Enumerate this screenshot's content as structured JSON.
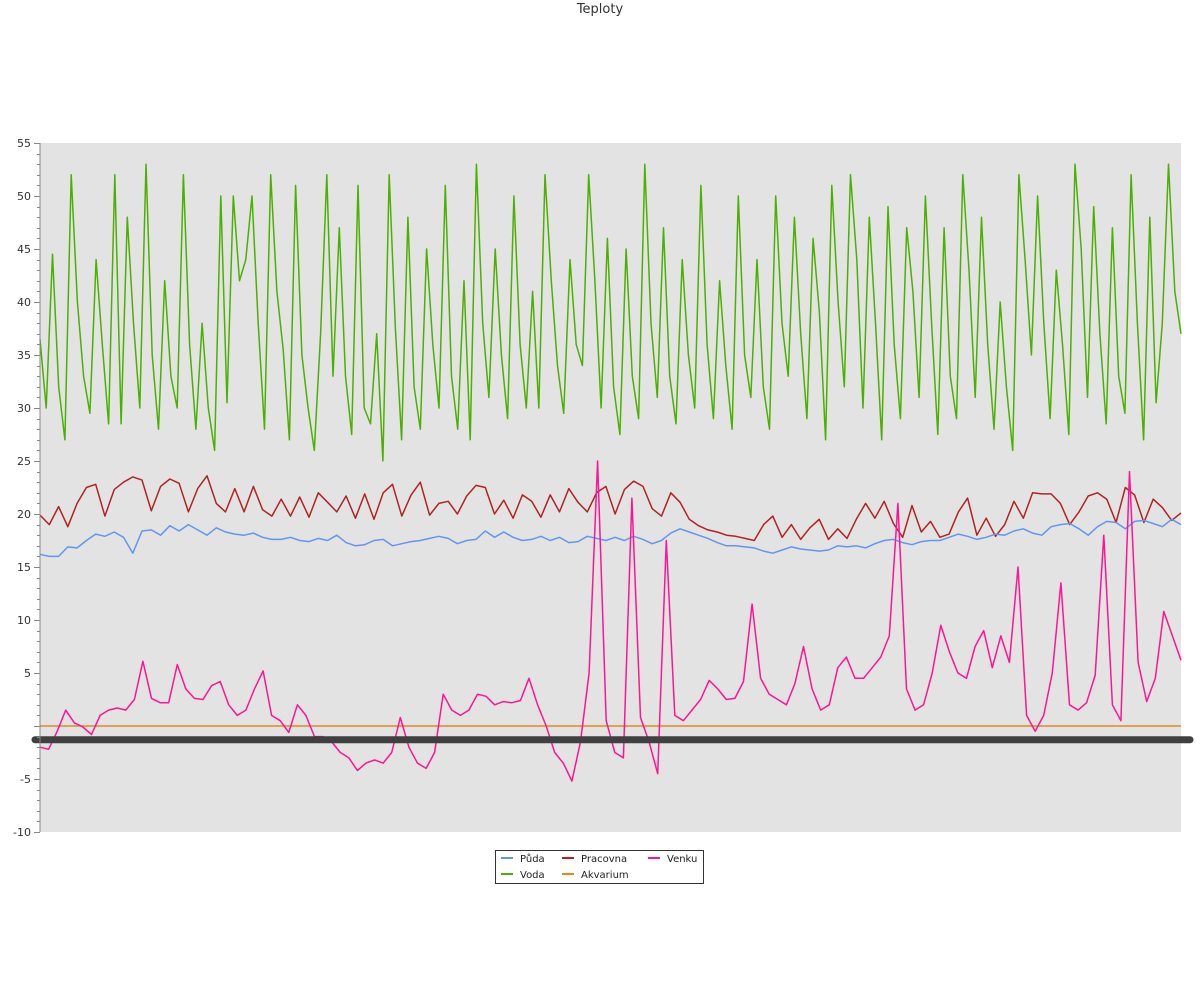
{
  "chart_data": {
    "type": "line",
    "title": "Teploty",
    "xlabel": "",
    "ylabel": "",
    "ylim": [
      -10,
      55
    ],
    "y_ticks": [
      -10,
      -5,
      0,
      5,
      10,
      15,
      20,
      25,
      30,
      35,
      40,
      45,
      50,
      55
    ],
    "y_tick_labels": [
      "-10",
      "-5",
      "",
      "5",
      "10",
      "15",
      "20",
      "25",
      "30",
      "35",
      "40",
      "45",
      "50",
      "55"
    ],
    "grid": false,
    "background": "#e3e3e3",
    "legend_position": "bottom-center",
    "series": [
      {
        "name": "Půda",
        "color": "#6495ed",
        "values": [
          16.2,
          16.0,
          16.0,
          16.9,
          16.8,
          17.5,
          18.1,
          17.9,
          18.3,
          17.8,
          16.3,
          18.4,
          18.5,
          18.0,
          18.9,
          18.4,
          19.0,
          18.5,
          18.0,
          18.7,
          18.3,
          18.1,
          18.0,
          18.2,
          17.8,
          17.6,
          17.6,
          17.8,
          17.5,
          17.4,
          17.7,
          17.5,
          18.0,
          17.3,
          17.0,
          17.1,
          17.5,
          17.6,
          17.0,
          17.2,
          17.4,
          17.5,
          17.7,
          17.9,
          17.7,
          17.2,
          17.5,
          17.6,
          18.4,
          17.8,
          18.3,
          17.8,
          17.5,
          17.6,
          17.9,
          17.5,
          17.8,
          17.3,
          17.4,
          17.9,
          17.7,
          17.5,
          17.8,
          17.5,
          17.9,
          17.6,
          17.2,
          17.5,
          18.2,
          18.6,
          18.3,
          18.0,
          17.7,
          17.3,
          17.0,
          17.0,
          16.9,
          16.8,
          16.5,
          16.3,
          16.6,
          16.9,
          16.7,
          16.6,
          16.5,
          16.6,
          17.0,
          16.9,
          17.0,
          16.8,
          17.2,
          17.5,
          17.6,
          17.3,
          17.1,
          17.4,
          17.5,
          17.5,
          17.8,
          18.1,
          17.9,
          17.6,
          17.8,
          18.1,
          18.0,
          18.4,
          18.6,
          18.2,
          18.0,
          18.8,
          19.0,
          19.1,
          18.6,
          18.0,
          18.8,
          19.3,
          19.2,
          18.6,
          19.3,
          19.4,
          19.1,
          18.8,
          19.5,
          19.0
        ]
      },
      {
        "name": "Pracovna",
        "color": "#b22222",
        "values": [
          19.9,
          19.0,
          20.7,
          18.8,
          21.0,
          22.5,
          22.8,
          19.8,
          22.3,
          23.0,
          23.5,
          23.2,
          20.3,
          22.6,
          23.3,
          22.9,
          20.2,
          22.4,
          23.6,
          21.0,
          20.2,
          22.4,
          20.2,
          22.6,
          20.4,
          19.8,
          21.4,
          19.8,
          21.6,
          19.7,
          22.0,
          21.1,
          20.2,
          21.7,
          19.6,
          21.9,
          19.5,
          22.0,
          22.8,
          19.8,
          21.8,
          23.0,
          19.9,
          21.0,
          21.2,
          20.0,
          21.7,
          22.7,
          22.5,
          20.0,
          21.3,
          19.6,
          21.8,
          21.2,
          19.7,
          21.8,
          20.2,
          22.4,
          21.1,
          20.2,
          22.0,
          22.6,
          20.0,
          22.3,
          23.1,
          22.6,
          20.5,
          19.8,
          22.0,
          21.1,
          19.5,
          18.9,
          18.5,
          18.3,
          18.0,
          17.9,
          17.7,
          17.5,
          19.0,
          19.8,
          17.8,
          19.0,
          17.6,
          18.7,
          19.5,
          17.6,
          18.6,
          17.7,
          19.5,
          21.0,
          19.6,
          21.2,
          19.1,
          17.8,
          20.8,
          18.3,
          19.3,
          17.8,
          18.1,
          20.2,
          21.5,
          18.0,
          19.6,
          17.9,
          19.0,
          21.2,
          19.6,
          22.0,
          21.9,
          21.9,
          21.0,
          19.0,
          20.2,
          21.7,
          22.0,
          21.4,
          19.2,
          22.5,
          21.8,
          19.2,
          21.4,
          20.6,
          19.4,
          20.1
        ]
      },
      {
        "name": "Venku",
        "color": "#ff1493",
        "values": [
          -2.0,
          -2.2,
          -0.5,
          1.5,
          0.3,
          -0.1,
          -0.8,
          1.0,
          1.5,
          1.7,
          1.5,
          2.5,
          6.1,
          2.6,
          2.2,
          2.2,
          5.8,
          3.5,
          2.6,
          2.5,
          3.8,
          4.2,
          2.0,
          1.0,
          1.5,
          3.5,
          5.2,
          1.0,
          0.5,
          -0.6,
          2.0,
          1.0,
          -1.0,
          -1.0,
          -1.5,
          -2.5,
          -3.0,
          -4.2,
          -3.5,
          -3.2,
          -3.5,
          -2.5,
          0.8,
          -2.0,
          -3.5,
          -4.0,
          -2.5,
          3.0,
          1.5,
          1.0,
          1.5,
          3.0,
          2.8,
          2.0,
          2.3,
          2.2,
          2.4,
          4.5,
          2.0,
          0.0,
          -2.5,
          -3.5,
          -5.2,
          -1.5,
          5.0,
          25.0,
          0.5,
          -2.5,
          -3.0,
          21.5,
          0.8,
          -1.5,
          -4.5,
          17.5,
          1.0,
          0.5,
          1.5,
          2.5,
          4.3,
          3.5,
          2.5,
          2.6,
          4.2,
          11.5,
          4.5,
          3.0,
          2.5,
          2.0,
          4.0,
          7.5,
          3.5,
          1.5,
          2.0,
          5.5,
          6.5,
          4.5,
          4.5,
          5.5,
          6.5,
          8.5,
          21.0,
          3.5,
          1.5,
          2.0,
          5.0,
          9.5,
          7.0,
          5.0,
          4.5,
          7.5,
          9.0,
          5.5,
          8.5,
          6.0,
          15.0,
          1.0,
          -0.5,
          1.0,
          5.0,
          13.5,
          2.0,
          1.5,
          2.2,
          4.8,
          18.0,
          2.0,
          0.5,
          24.0,
          6.0,
          2.3,
          4.5,
          10.8,
          8.5,
          6.2
        ]
      },
      {
        "name": "Voda",
        "color": "#4cb000",
        "values": [
          36.5,
          30.0,
          44.5,
          32.0,
          27.0,
          52.0,
          40.0,
          33.0,
          29.5,
          44.0,
          36.0,
          28.5,
          52.0,
          28.5,
          48.0,
          38.0,
          30.0,
          53.0,
          35.0,
          28.0,
          42.0,
          33.0,
          30.0,
          52.0,
          36.0,
          28.0,
          38.0,
          30.0,
          26.0,
          50.0,
          30.5,
          50.0,
          42.0,
          44.0,
          50.0,
          38.0,
          28.0,
          52.0,
          41.0,
          35.5,
          27.0,
          51.0,
          35.0,
          30.0,
          26.0,
          37.0,
          52.0,
          33.0,
          47.0,
          33.0,
          27.5,
          51.0,
          30.0,
          28.5,
          37.0,
          25.0,
          52.0,
          37.5,
          27.0,
          48.0,
          32.0,
          28.0,
          45.0,
          36.0,
          30.0,
          51.0,
          33.0,
          28.0,
          42.0,
          27.0,
          53.0,
          38.0,
          31.0,
          45.0,
          35.0,
          29.0,
          50.0,
          36.0,
          30.0,
          41.0,
          30.0,
          52.0,
          42.0,
          34.0,
          29.5,
          44.0,
          36.0,
          34.0,
          52.0,
          42.0,
          30.0,
          46.0,
          32.0,
          27.5,
          45.0,
          33.0,
          29.0,
          53.0,
          38.0,
          31.0,
          47.0,
          33.0,
          28.5,
          44.0,
          35.0,
          30.0,
          51.0,
          36.0,
          29.0,
          42.0,
          34.0,
          28.0,
          50.0,
          35.0,
          31.0,
          44.0,
          32.0,
          28.0,
          50.0,
          38.0,
          33.0,
          48.0,
          37.0,
          29.0,
          46.0,
          39.0,
          27.0,
          51.0,
          40.0,
          32.0,
          52.0,
          44.0,
          30.0,
          48.0,
          38.0,
          27.0,
          49.0,
          36.0,
          29.0,
          47.0,
          41.0,
          31.0,
          50.0,
          38.0,
          27.5,
          47.0,
          33.0,
          29.0,
          52.0,
          43.0,
          31.0,
          48.0,
          36.0,
          28.0,
          40.0,
          32.0,
          26.0,
          52.0,
          44.0,
          35.0,
          50.0,
          38.0,
          29.0,
          43.0,
          36.0,
          27.5,
          53.0,
          45.0,
          31.0,
          49.0,
          37.0,
          28.5,
          47.0,
          33.0,
          29.5,
          52.0,
          38.0,
          27.0,
          48.0,
          30.5,
          38.0,
          53.0,
          41.0,
          37.0
        ]
      },
      {
        "name": "Akvarium",
        "color": "#e08a1e",
        "values": [
          0.0,
          0.0
        ]
      }
    ],
    "reference_lines": [
      {
        "value": -1.3,
        "color": "#404040"
      }
    ]
  },
  "legend": {
    "items": [
      {
        "label": "Půda",
        "color": "#6495ed"
      },
      {
        "label": "Pracovna",
        "color": "#b22222"
      },
      {
        "label": "Venku",
        "color": "#ff1493"
      },
      {
        "label": "Voda",
        "color": "#4cb000"
      },
      {
        "label": "Akvarium",
        "color": "#e08a1e"
      }
    ]
  }
}
